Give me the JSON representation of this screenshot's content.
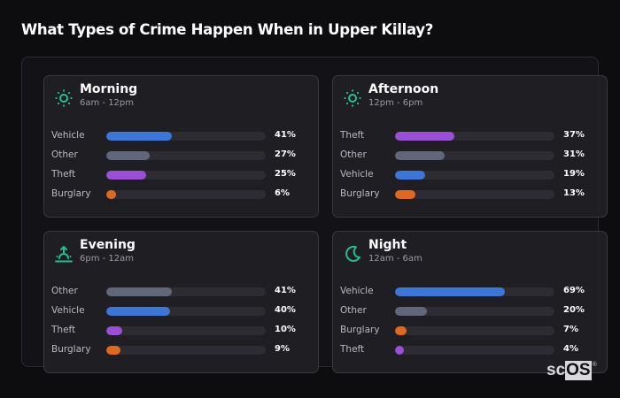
{
  "page": {
    "title": "What Types of Crime Happen When in Upper Killay?"
  },
  "colors": {
    "Vehicle": "#3a77d8",
    "Other": "#5f6778",
    "Theft": "#9a4fd6",
    "Burglary": "#e0691f",
    "icon_accent": "#22c08f"
  },
  "cards": [
    {
      "title": "Morning",
      "subtitle": "6am - 12pm",
      "icon": "sun-icon",
      "rows": [
        {
          "label": "Vehicle",
          "value": 41,
          "pct": "41%"
        },
        {
          "label": "Other",
          "value": 27,
          "pct": "27%"
        },
        {
          "label": "Theft",
          "value": 25,
          "pct": "25%"
        },
        {
          "label": "Burglary",
          "value": 6,
          "pct": "6%"
        }
      ]
    },
    {
      "title": "Afternoon",
      "subtitle": "12pm - 6pm",
      "icon": "sun-icon",
      "rows": [
        {
          "label": "Theft",
          "value": 37,
          "pct": "37%"
        },
        {
          "label": "Other",
          "value": 31,
          "pct": "31%"
        },
        {
          "label": "Vehicle",
          "value": 19,
          "pct": "19%"
        },
        {
          "label": "Burglary",
          "value": 13,
          "pct": "13%"
        }
      ]
    },
    {
      "title": "Evening",
      "subtitle": "6pm - 12am",
      "icon": "sunset-icon",
      "rows": [
        {
          "label": "Other",
          "value": 41,
          "pct": "41%"
        },
        {
          "label": "Vehicle",
          "value": 40,
          "pct": "40%"
        },
        {
          "label": "Theft",
          "value": 10,
          "pct": "10%"
        },
        {
          "label": "Burglary",
          "value": 9,
          "pct": "9%"
        }
      ]
    },
    {
      "title": "Night",
      "subtitle": "12am - 6am",
      "icon": "moon-icon",
      "rows": [
        {
          "label": "Vehicle",
          "value": 69,
          "pct": "69%"
        },
        {
          "label": "Other",
          "value": 20,
          "pct": "20%"
        },
        {
          "label": "Burglary",
          "value": 7,
          "pct": "7%"
        },
        {
          "label": "Theft",
          "value": 4,
          "pct": "4%"
        }
      ]
    }
  ],
  "logo": {
    "sc": "sc",
    "os": "OS",
    "reg": "®"
  }
}
